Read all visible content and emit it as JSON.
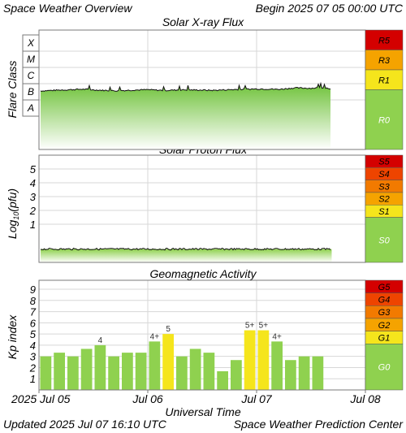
{
  "header": {
    "title": "Space Weather Overview",
    "begin": "Begin 2025 07 05 00:00 UTC"
  },
  "footer": {
    "updated": "Updated 2025 Jul 07 16:10 UTC",
    "center": "Space Weather Prediction Center"
  },
  "colors": {
    "green": "#8fd14f",
    "yellow": "#f5e51c",
    "orange": "#f5a300",
    "orange_red": "#f27a00",
    "red_orange": "#ee4400",
    "red": "#d40000",
    "frame": "#7a7a7a"
  },
  "x_axis": {
    "label": "Universal Time",
    "ticks": [
      "2025 Jul 05",
      "Jul 06",
      "Jul 07",
      "Jul 08"
    ]
  },
  "chart_data": [
    {
      "type": "area",
      "title": "Solar X-ray Flux",
      "ylabel": "Flare Class",
      "y_categories": [
        "A",
        "B",
        "C",
        "M",
        "X"
      ],
      "x_range_days": [
        0,
        3
      ],
      "data_end_day": 2.69,
      "approx_flux_level": "mid B to low C",
      "series": [
        {
          "x_days": [
            0,
            0.1,
            0.25,
            0.4,
            0.55,
            0.7,
            0.85,
            1.0,
            1.15,
            1.3,
            1.45,
            1.6,
            1.75,
            1.9,
            2.05,
            2.2,
            2.35,
            2.5,
            2.6,
            2.69
          ],
          "level": [
            0.55,
            0.58,
            0.62,
            0.66,
            0.6,
            0.56,
            0.6,
            0.63,
            0.58,
            0.62,
            0.61,
            0.59,
            0.63,
            0.66,
            0.68,
            0.65,
            0.74,
            0.72,
            0.76,
            0.7
          ]
        }
      ],
      "scale": {
        "labels": [
          "R5",
          "R3",
          "R1",
          "R0"
        ],
        "colors": [
          "#d40000",
          "#f5a300",
          "#f5e51c",
          "#8fd14f"
        ]
      }
    },
    {
      "type": "area",
      "title": "Solar Proton Flux",
      "ylabel": "Log10(pfu)",
      "y_ticks": [
        1,
        2,
        3,
        4,
        5
      ],
      "x_range_days": [
        0,
        3
      ],
      "data_end_day": 2.69,
      "approx_log_pfu": -0.8,
      "scale": {
        "labels": [
          "S5",
          "S4",
          "S3",
          "S2",
          "S1",
          "S0"
        ],
        "colors": [
          "#d40000",
          "#ee4400",
          "#f27a00",
          "#f5a300",
          "#f5e51c",
          "#8fd14f"
        ]
      }
    },
    {
      "type": "bar",
      "title": "Geomagnetic Activity",
      "ylabel": "Kp index",
      "ylim": [
        0,
        9.8
      ],
      "y_ticks": [
        1,
        2,
        3,
        4,
        5,
        6,
        7,
        8,
        9
      ],
      "x_range_days": [
        0,
        3
      ],
      "bar_hours": 3,
      "values": [
        3.0,
        3.33,
        3.0,
        3.67,
        4.0,
        3.0,
        3.33,
        3.33,
        4.33,
        5.0,
        3.0,
        3.67,
        3.33,
        1.67,
        2.67,
        5.33,
        5.33,
        4.33,
        2.67,
        3.0,
        3.0
      ],
      "value_labels": [
        "",
        "",
        "",
        "",
        "4",
        "",
        "",
        "",
        "4+",
        "5",
        "",
        "",
        "",
        "",
        "",
        "5+",
        "5+",
        "4+",
        "",
        "",
        ""
      ],
      "scale": {
        "labels": [
          "G5",
          "G4",
          "G3",
          "G2",
          "G1",
          "G0"
        ],
        "colors": [
          "#d40000",
          "#ee4400",
          "#f27a00",
          "#f5a300",
          "#f5e51c",
          "#8fd14f"
        ]
      }
    }
  ]
}
